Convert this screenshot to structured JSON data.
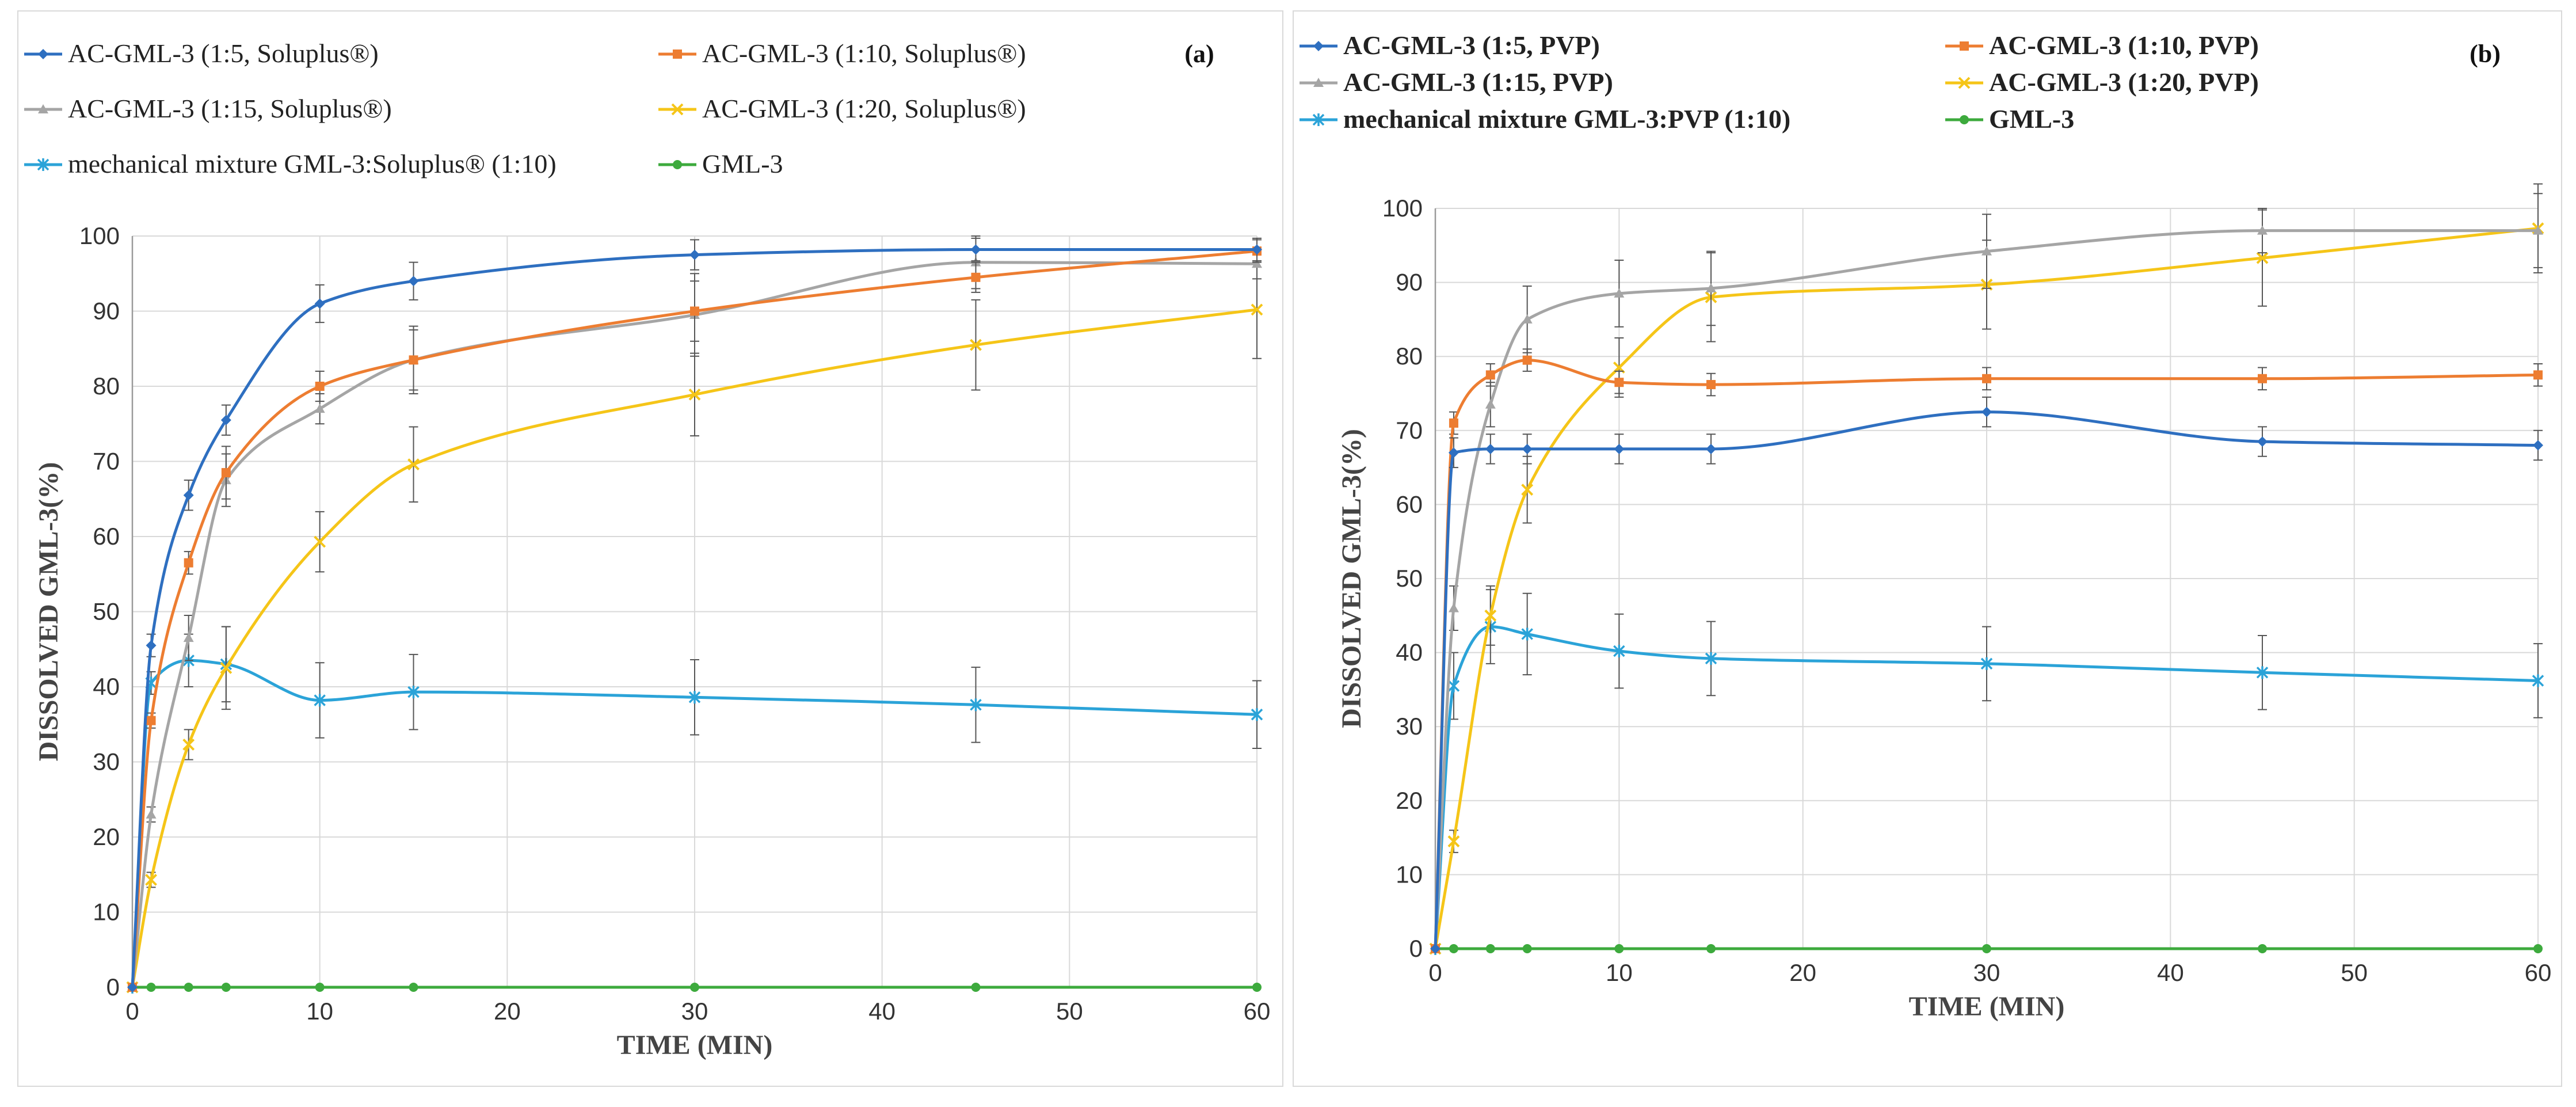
{
  "chart_data": [
    {
      "type": "line",
      "panel_label": "(a)",
      "xlabel": "TIME  (MIN)",
      "ylabel": "DISSOLVED GML-3(%)",
      "xlim": [
        0,
        60
      ],
      "ylim": [
        0,
        100
      ],
      "xticks": [
        "0",
        "10",
        "20",
        "30",
        "40",
        "50",
        "60"
      ],
      "yticks": [
        "0",
        "10",
        "20",
        "30",
        "40",
        "50",
        "60",
        "70",
        "80",
        "90",
        "100"
      ],
      "x": [
        0,
        1,
        3,
        5,
        10,
        15,
        30,
        45,
        60
      ],
      "grid": true,
      "legend_position": "top",
      "series": [
        {
          "name": "AC-GML-3 (1:5, Soluplus®)",
          "color": "#2e6fc0",
          "marker": "diamond",
          "values": [
            0,
            45.5,
            65.5,
            75.5,
            91,
            94,
            97.5,
            98.2,
            98.2
          ],
          "errors": [
            0,
            1.5,
            2,
            2,
            2.5,
            2.5,
            2,
            1.5,
            1.5
          ]
        },
        {
          "name": "AC-GML-3 (1:10, Soluplus®)",
          "color": "#ed7d31",
          "marker": "square",
          "values": [
            0,
            35.5,
            56.5,
            68.5,
            80,
            83.5,
            90,
            94.5,
            98
          ],
          "errors": [
            0,
            1,
            1.5,
            3.5,
            2,
            4.5,
            4,
            2,
            1.5
          ]
        },
        {
          "name": "AC-GML-3 (1:15, Soluplus®)",
          "color": "#a5a5a5",
          "marker": "triangle",
          "values": [
            0,
            23,
            46.5,
            67.5,
            77,
            83.5,
            89.5,
            96.5,
            96.3
          ],
          "errors": [
            0,
            1,
            3,
            3.5,
            2,
            4,
            5.5,
            3.5,
            2
          ]
        },
        {
          "name": "AC-GML-3 (1:20, Soluplus®)",
          "color": "#f5c518",
          "marker": "x",
          "values": [
            0,
            14.3,
            32.3,
            42.5,
            59.3,
            69.6,
            78.9,
            85.5,
            90.2
          ],
          "errors": [
            0,
            1,
            2,
            5.5,
            4,
            5,
            5.5,
            6,
            6.5
          ]
        },
        {
          "name": "mechanical mixture GML-3:Soluplus® (1:10)",
          "color": "#2ba3d8",
          "marker": "asterisk",
          "values": [
            0,
            40.5,
            43.5,
            43,
            38.2,
            39.3,
            38.6,
            37.6,
            36.3
          ],
          "errors": [
            0,
            1.5,
            3.5,
            5,
            5,
            5,
            5,
            5,
            4.5
          ]
        },
        {
          "name": "GML-3",
          "color": "#3daa3d",
          "marker": "circle",
          "values": [
            0,
            0,
            0,
            0,
            0,
            0,
            0,
            0,
            0
          ],
          "errors": [
            0,
            0,
            0,
            0,
            0,
            0,
            0,
            0,
            0
          ]
        }
      ]
    },
    {
      "type": "line",
      "panel_label": "(b)",
      "xlabel": "TIME  (MIN)",
      "ylabel": "DISSOLVED GML-3(%)",
      "xlim": [
        0,
        60
      ],
      "ylim": [
        0,
        100
      ],
      "xticks": [
        "0",
        "10",
        "20",
        "30",
        "40",
        "50",
        "60"
      ],
      "yticks": [
        "0",
        "10",
        "20",
        "30",
        "40",
        "50",
        "60",
        "70",
        "80",
        "90",
        "100"
      ],
      "x": [
        0,
        1,
        3,
        5,
        10,
        15,
        30,
        45,
        60
      ],
      "grid": true,
      "legend_position": "top",
      "series": [
        {
          "name": "AC-GML-3 (1:5, PVP)",
          "color": "#2e6fc0",
          "marker": "diamond",
          "values": [
            0,
            67,
            67.5,
            67.5,
            67.5,
            67.5,
            72.5,
            68.5,
            68
          ],
          "errors": [
            0,
            2,
            2,
            2,
            2,
            2,
            2,
            2,
            2
          ]
        },
        {
          "name": "AC-GML-3 (1:10, PVP)",
          "color": "#ed7d31",
          "marker": "square",
          "values": [
            0,
            71,
            77.5,
            79.5,
            76.5,
            76.2,
            77,
            77,
            77.5
          ],
          "errors": [
            0,
            1.5,
            1.5,
            1.5,
            1.5,
            1.5,
            1.5,
            1.5,
            1.5
          ]
        },
        {
          "name": "AC-GML-3 (1:15, PVP)",
          "color": "#a5a5a5",
          "marker": "triangle",
          "values": [
            0,
            46,
            73.5,
            85,
            88.5,
            89.2,
            94.2,
            97,
            97
          ],
          "errors": [
            0,
            3,
            3,
            4.5,
            4.5,
            5,
            5,
            3,
            5
          ]
        },
        {
          "name": "AC-GML-3 (1:20, PVP)",
          "color": "#f5c518",
          "marker": "x",
          "values": [
            0,
            14.5,
            45,
            62,
            78.5,
            88,
            89.7,
            93.3,
            97.3
          ],
          "errors": [
            0,
            1.5,
            4,
            4.5,
            4,
            6,
            6,
            6.5,
            6
          ]
        },
        {
          "name": "mechanical mixture GML-3:PVP (1:10)",
          "color": "#2ba3d8",
          "marker": "asterisk",
          "values": [
            0,
            35.5,
            43.5,
            42.5,
            40.2,
            39.2,
            38.5,
            37.3,
            36.2
          ],
          "errors": [
            0,
            4.5,
            5,
            5.5,
            5,
            5,
            5,
            5,
            5
          ]
        },
        {
          "name": "GML-3",
          "color": "#3daa3d",
          "marker": "circle",
          "values": [
            0,
            0,
            0,
            0,
            0,
            0,
            0,
            0,
            0
          ],
          "errors": [
            0,
            0,
            0,
            0,
            0,
            0,
            0,
            0,
            0
          ]
        }
      ]
    }
  ]
}
